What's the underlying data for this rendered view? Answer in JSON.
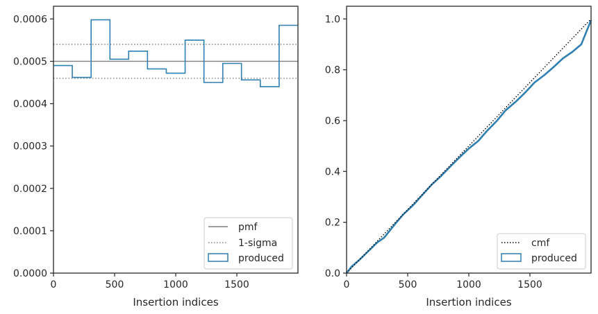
{
  "chart_data": [
    {
      "type": "line",
      "xlabel": "Insertion indices",
      "ylabel": "",
      "xlim": [
        0,
        2000
      ],
      "ylim": [
        0,
        0.00063
      ],
      "xticks": [
        0,
        500,
        1000,
        1500
      ],
      "xtick_labels": [
        "0",
        "500",
        "1000",
        "1500"
      ],
      "yticks": [
        0,
        0.0001,
        0.0002,
        0.0003,
        0.0004,
        0.0005,
        0.0006
      ],
      "ytick_labels": [
        "0.0000",
        "0.0001",
        "0.0002",
        "0.0003",
        "0.0004",
        "0.0005",
        "0.0006"
      ],
      "grid": false,
      "legend_position": "lower-right",
      "pmf": {
        "name": "pmf",
        "value": 0.0005,
        "color": "#7f7f7f"
      },
      "sigma": {
        "name": "1-sigma",
        "values": [
          0.00046,
          0.00054
        ],
        "color": "#7f7f7f"
      },
      "histogram": {
        "name": "produced",
        "color": "#2f7fb1",
        "edges": [
          0,
          154,
          308,
          462,
          615,
          769,
          923,
          1077,
          1231,
          1385,
          1538,
          1692,
          1846,
          2000
        ],
        "values": [
          0.00049,
          0.000462,
          0.000598,
          0.000505,
          0.000524,
          0.000482,
          0.000472,
          0.00055,
          0.00045,
          0.000495,
          0.000456,
          0.00044,
          0.000585
        ]
      }
    },
    {
      "type": "line",
      "xlabel": "Insertion indices",
      "ylabel": "",
      "xlim": [
        0,
        2000
      ],
      "ylim": [
        0,
        1.05
      ],
      "xticks": [
        0,
        500,
        1000,
        1500
      ],
      "xtick_labels": [
        "0",
        "500",
        "1000",
        "1500"
      ],
      "yticks": [
        0,
        0.2,
        0.4,
        0.6,
        0.8,
        1.0
      ],
      "ytick_labels": [
        "0.0",
        "0.2",
        "0.4",
        "0.6",
        "0.8",
        "1.0"
      ],
      "grid": false,
      "legend_position": "lower-right",
      "cmf": {
        "name": "cmf",
        "x": [
          0,
          2000
        ],
        "y": [
          0,
          1
        ],
        "color": "#000000"
      },
      "produced": {
        "name": "produced",
        "color": "#2f7fb1",
        "x": [
          0,
          40,
          100,
          154,
          250,
          308,
          400,
          462,
          550,
          615,
          700,
          769,
          850,
          923,
          1000,
          1077,
          1150,
          1231,
          1300,
          1385,
          1460,
          1538,
          1620,
          1692,
          1770,
          1846,
          1920,
          2000
        ],
        "y": [
          0,
          0.025,
          0.05,
          0.075,
          0.12,
          0.14,
          0.195,
          0.23,
          0.27,
          0.305,
          0.35,
          0.38,
          0.42,
          0.455,
          0.49,
          0.52,
          0.56,
          0.6,
          0.64,
          0.675,
          0.71,
          0.75,
          0.78,
          0.81,
          0.845,
          0.87,
          0.9,
          0.995
        ]
      }
    }
  ],
  "legends": [
    {
      "items": [
        "pmf",
        "1-sigma",
        "produced"
      ]
    },
    {
      "items": [
        "cmf",
        "produced"
      ]
    }
  ]
}
